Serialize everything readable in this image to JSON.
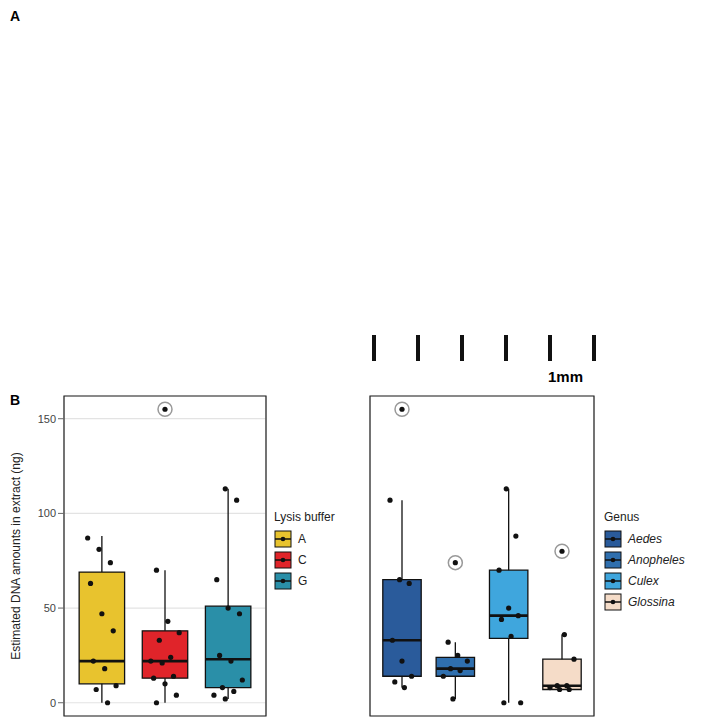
{
  "panel_a": {
    "label": "A",
    "scale_bar": "1mm"
  },
  "chart_data": [
    {
      "type": "box",
      "panel": "B",
      "y_label": "Estimated DNA amounts in extract (ng)",
      "legend_title": "Lysis buffer",
      "ylim": [
        -7,
        162
      ],
      "yticks": [
        0,
        50,
        100,
        150
      ],
      "grid": true,
      "tick_labels": "y",
      "series": [
        {
          "name": "A",
          "color": "#e8c32e",
          "whisker_low": 0,
          "q1": 10,
          "median": 22,
          "q3": 69,
          "whisker_high": 88,
          "values": [
            87,
            81,
            74,
            63,
            47,
            38,
            22,
            18,
            9,
            7,
            0
          ],
          "outliers": []
        },
        {
          "name": "C",
          "color": "#e0242a",
          "whisker_low": 0,
          "q1": 13,
          "median": 22,
          "q3": 38,
          "whisker_high": 70,
          "values": [
            70,
            43,
            37,
            33,
            24,
            22,
            21,
            14,
            13,
            10,
            4,
            0
          ],
          "outliers": [
            155
          ]
        },
        {
          "name": "G",
          "color": "#2a8fa8",
          "whisker_low": 2,
          "q1": 8,
          "median": 23,
          "q3": 51,
          "whisker_high": 113,
          "values": [
            113,
            107,
            65,
            50,
            47,
            25,
            22,
            12,
            8,
            6,
            4,
            2
          ],
          "outliers": []
        }
      ]
    },
    {
      "type": "box",
      "legend_title": "Genus",
      "ylim": [
        -7,
        162
      ],
      "yticks": [
        0,
        50,
        100,
        150
      ],
      "grid": true,
      "tick_labels": false,
      "series": [
        {
          "name": "Aedes",
          "color": "#2a5b9b",
          "whisker_low": 8,
          "q1": 14,
          "median": 33,
          "q3": 65,
          "whisker_high": 107,
          "values": [
            107,
            65,
            63,
            33,
            22,
            14,
            11,
            8
          ],
          "outliers": [
            155
          ]
        },
        {
          "name": "Anopheles",
          "color": "#2f6fae",
          "whisker_low": 2,
          "q1": 14,
          "median": 18,
          "q3": 24,
          "whisker_high": 32,
          "values": [
            32,
            25,
            22,
            18,
            17,
            14,
            2
          ],
          "outliers": [
            74
          ]
        },
        {
          "name": "Culex",
          "color": "#3fa6dd",
          "whisker_low": 0,
          "q1": 34,
          "median": 46,
          "q3": 70,
          "whisker_high": 113,
          "values": [
            113,
            88,
            70,
            50,
            46,
            44,
            35,
            0,
            0
          ],
          "outliers": []
        },
        {
          "name": "Glossina",
          "color": "#f5dcc8",
          "whisker_low": 7,
          "q1": 7,
          "median": 9,
          "q3": 23,
          "whisker_high": 36,
          "values": [
            36,
            23,
            9,
            9,
            8,
            7,
            7
          ],
          "outliers": [
            80
          ]
        }
      ]
    }
  ]
}
